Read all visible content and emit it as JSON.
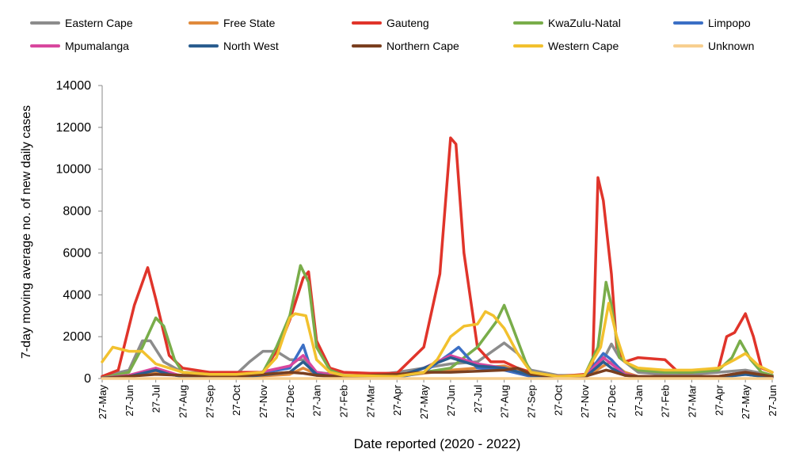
{
  "chart_data": {
    "type": "line",
    "xlabel": "Date reported (2020 - 2022)",
    "ylabel": "7-day moving average no. of new daily cases",
    "ylim": [
      0,
      14000
    ],
    "yticks": [
      0,
      2000,
      4000,
      6000,
      8000,
      10000,
      12000,
      14000
    ],
    "x_tick_labels": [
      "27-May",
      "27-Jun",
      "27-Jul",
      "27-Aug",
      "27-Sep",
      "27-Oct",
      "27-Nov",
      "27-Dec",
      "27-Jan",
      "27-Feb",
      "27-Mar",
      "27-Apr",
      "27-May",
      "27-Jun",
      "27-Jul",
      "27-Aug",
      "27-Sep",
      "27-Oct",
      "27-Nov",
      "27-Dec",
      "27-Jan",
      "27-Feb",
      "27-Mar",
      "27-Apr",
      "27-May",
      "27-Jun"
    ],
    "x_index_note": "x values are month indices: 0 = 27-May-2020, 25 = 27-Jun-2022",
    "grid": false,
    "legend_position": "top",
    "series": [
      {
        "name": "Eastern Cape",
        "color": "#8c8c8c",
        "points": [
          [
            0,
            100
          ],
          [
            1,
            400
          ],
          [
            1.5,
            1800
          ],
          [
            1.8,
            1800
          ],
          [
            2.3,
            800
          ],
          [
            3,
            300
          ],
          [
            5,
            200
          ],
          [
            5.5,
            800
          ],
          [
            6,
            1300
          ],
          [
            6.5,
            1300
          ],
          [
            7,
            900
          ],
          [
            7.5,
            900
          ],
          [
            8,
            300
          ],
          [
            9,
            150
          ],
          [
            10,
            150
          ],
          [
            11,
            300
          ],
          [
            12,
            500
          ],
          [
            13,
            700
          ],
          [
            14,
            800
          ],
          [
            15,
            1700
          ],
          [
            15.5,
            1200
          ],
          [
            16,
            400
          ],
          [
            17,
            150
          ],
          [
            18,
            150
          ],
          [
            18.7,
            900
          ],
          [
            19,
            1650
          ],
          [
            19.3,
            1000
          ],
          [
            20,
            300
          ],
          [
            21,
            200
          ],
          [
            22,
            200
          ],
          [
            23,
            300
          ],
          [
            24,
            400
          ],
          [
            25,
            150
          ]
        ]
      },
      {
        "name": "Free State",
        "color": "#e08a3c",
        "points": [
          [
            0,
            30
          ],
          [
            1,
            100
          ],
          [
            2,
            300
          ],
          [
            3,
            150
          ],
          [
            5,
            50
          ],
          [
            7,
            200
          ],
          [
            7.5,
            500
          ],
          [
            8,
            200
          ],
          [
            9,
            50
          ],
          [
            11,
            100
          ],
          [
            13,
            400
          ],
          [
            14,
            500
          ],
          [
            15,
            600
          ],
          [
            16,
            200
          ],
          [
            18,
            50
          ],
          [
            18.7,
            600
          ],
          [
            19,
            800
          ],
          [
            19.5,
            300
          ],
          [
            20,
            100
          ],
          [
            23,
            100
          ],
          [
            24,
            300
          ],
          [
            25,
            100
          ]
        ]
      },
      {
        "name": "Gauteng",
        "color": "#e0342a",
        "points": [
          [
            0,
            100
          ],
          [
            0.6,
            400
          ],
          [
            1.2,
            3500
          ],
          [
            1.7,
            5300
          ],
          [
            2,
            3800
          ],
          [
            2.5,
            1100
          ],
          [
            3,
            500
          ],
          [
            4,
            300
          ],
          [
            5,
            300
          ],
          [
            6,
            300
          ],
          [
            6.6,
            1500
          ],
          [
            7,
            2800
          ],
          [
            7.5,
            4800
          ],
          [
            7.7,
            5100
          ],
          [
            8,
            1800
          ],
          [
            8.5,
            500
          ],
          [
            9,
            300
          ],
          [
            10,
            250
          ],
          [
            11,
            250
          ],
          [
            12,
            1500
          ],
          [
            12.6,
            5000
          ],
          [
            13,
            11500
          ],
          [
            13.2,
            11200
          ],
          [
            13.5,
            6000
          ],
          [
            14,
            1500
          ],
          [
            14.5,
            800
          ],
          [
            15,
            800
          ],
          [
            15.5,
            500
          ],
          [
            16,
            300
          ],
          [
            17,
            100
          ],
          [
            18,
            200
          ],
          [
            18.3,
            500
          ],
          [
            18.5,
            9600
          ],
          [
            18.7,
            8500
          ],
          [
            19,
            5000
          ],
          [
            19.2,
            1500
          ],
          [
            19.5,
            800
          ],
          [
            20,
            1000
          ],
          [
            21,
            900
          ],
          [
            21.5,
            300
          ],
          [
            22,
            300
          ],
          [
            23,
            500
          ],
          [
            23.3,
            2000
          ],
          [
            23.6,
            2200
          ],
          [
            24,
            3100
          ],
          [
            24.3,
            2000
          ],
          [
            24.6,
            500
          ],
          [
            25,
            300
          ]
        ]
      },
      {
        "name": "KwaZulu-Natal",
        "color": "#79ad4a",
        "points": [
          [
            0,
            30
          ],
          [
            1,
            300
          ],
          [
            1.5,
            1500
          ],
          [
            2,
            2900
          ],
          [
            2.3,
            2500
          ],
          [
            2.7,
            900
          ],
          [
            3,
            300
          ],
          [
            5,
            100
          ],
          [
            6,
            300
          ],
          [
            6.5,
            1500
          ],
          [
            7,
            3000
          ],
          [
            7.4,
            5400
          ],
          [
            7.7,
            4600
          ],
          [
            8,
            1500
          ],
          [
            8.5,
            400
          ],
          [
            9,
            150
          ],
          [
            11,
            100
          ],
          [
            12,
            300
          ],
          [
            13,
            500
          ],
          [
            13.5,
            1000
          ],
          [
            14,
            1500
          ],
          [
            14.7,
            2700
          ],
          [
            15,
            3500
          ],
          [
            15.3,
            2500
          ],
          [
            15.8,
            800
          ],
          [
            16,
            300
          ],
          [
            17,
            100
          ],
          [
            18,
            150
          ],
          [
            18.5,
            1500
          ],
          [
            18.8,
            4600
          ],
          [
            19,
            3500
          ],
          [
            19.3,
            1000
          ],
          [
            20,
            400
          ],
          [
            21,
            300
          ],
          [
            22,
            300
          ],
          [
            23,
            400
          ],
          [
            23.5,
            1000
          ],
          [
            23.8,
            1800
          ],
          [
            24.2,
            900
          ],
          [
            24.6,
            300
          ],
          [
            25,
            150
          ]
        ]
      },
      {
        "name": "Limpopo",
        "color": "#3b6fc5",
        "points": [
          [
            0,
            20
          ],
          [
            1,
            100
          ],
          [
            2,
            400
          ],
          [
            2.5,
            200
          ],
          [
            3,
            100
          ],
          [
            5,
            50
          ],
          [
            7,
            500
          ],
          [
            7.5,
            1600
          ],
          [
            7.8,
            400
          ],
          [
            8,
            150
          ],
          [
            9,
            50
          ],
          [
            11,
            50
          ],
          [
            12,
            300
          ],
          [
            13,
            1200
          ],
          [
            13.3,
            1500
          ],
          [
            14,
            500
          ],
          [
            15,
            400
          ],
          [
            16,
            100
          ],
          [
            18,
            50
          ],
          [
            18.7,
            1200
          ],
          [
            19,
            900
          ],
          [
            19.5,
            200
          ],
          [
            20,
            80
          ],
          [
            23,
            50
          ],
          [
            24,
            200
          ],
          [
            25,
            50
          ]
        ]
      },
      {
        "name": "Mpumalanga",
        "color": "#d8479e",
        "points": [
          [
            0,
            20
          ],
          [
            1,
            150
          ],
          [
            2,
            500
          ],
          [
            2.5,
            300
          ],
          [
            3,
            100
          ],
          [
            5,
            50
          ],
          [
            7,
            600
          ],
          [
            7.5,
            1100
          ],
          [
            8,
            300
          ],
          [
            9,
            80
          ],
          [
            11,
            80
          ],
          [
            12,
            500
          ],
          [
            13,
            1100
          ],
          [
            13.5,
            900
          ],
          [
            14,
            700
          ],
          [
            15,
            500
          ],
          [
            16,
            150
          ],
          [
            18,
            80
          ],
          [
            18.7,
            1000
          ],
          [
            19,
            700
          ],
          [
            19.5,
            200
          ],
          [
            20,
            100
          ],
          [
            23,
            100
          ],
          [
            24,
            300
          ],
          [
            25,
            100
          ]
        ]
      },
      {
        "name": "North West",
        "color": "#2a5d8f",
        "points": [
          [
            0,
            20
          ],
          [
            1,
            100
          ],
          [
            2,
            400
          ],
          [
            2.5,
            200
          ],
          [
            3,
            100
          ],
          [
            5,
            50
          ],
          [
            7,
            300
          ],
          [
            7.5,
            800
          ],
          [
            8,
            200
          ],
          [
            9,
            50
          ],
          [
            11,
            100
          ],
          [
            12,
            500
          ],
          [
            13,
            1000
          ],
          [
            14,
            600
          ],
          [
            15,
            500
          ],
          [
            16,
            150
          ],
          [
            18,
            50
          ],
          [
            18.7,
            800
          ],
          [
            19,
            500
          ],
          [
            19.5,
            150
          ],
          [
            20,
            80
          ],
          [
            23,
            80
          ],
          [
            24,
            200
          ],
          [
            25,
            50
          ]
        ]
      },
      {
        "name": "Northern Cape",
        "color": "#7a3f1f",
        "points": [
          [
            0,
            10
          ],
          [
            2,
            200
          ],
          [
            3,
            150
          ],
          [
            5,
            100
          ],
          [
            6,
            200
          ],
          [
            7,
            300
          ],
          [
            7.5,
            250
          ],
          [
            8,
            150
          ],
          [
            9,
            100
          ],
          [
            11,
            200
          ],
          [
            12,
            300
          ],
          [
            13,
            300
          ],
          [
            14,
            350
          ],
          [
            15,
            400
          ],
          [
            15.5,
            500
          ],
          [
            16,
            200
          ],
          [
            17,
            80
          ],
          [
            18,
            100
          ],
          [
            18.8,
            400
          ],
          [
            19,
            350
          ],
          [
            19.5,
            150
          ],
          [
            20,
            100
          ],
          [
            23,
            100
          ],
          [
            24,
            300
          ],
          [
            25,
            100
          ]
        ]
      },
      {
        "name": "Western Cape",
        "color": "#f2c12e",
        "points": [
          [
            0,
            800
          ],
          [
            0.4,
            1500
          ],
          [
            0.7,
            1400
          ],
          [
            1,
            1300
          ],
          [
            1.5,
            1300
          ],
          [
            2,
            700
          ],
          [
            3,
            300
          ],
          [
            4,
            200
          ],
          [
            5,
            200
          ],
          [
            6,
            300
          ],
          [
            6.5,
            1000
          ],
          [
            7,
            2900
          ],
          [
            7.2,
            3100
          ],
          [
            7.6,
            3000
          ],
          [
            8,
            900
          ],
          [
            8.5,
            300
          ],
          [
            9,
            150
          ],
          [
            11,
            100
          ],
          [
            12,
            300
          ],
          [
            12.5,
            900
          ],
          [
            13,
            2000
          ],
          [
            13.5,
            2500
          ],
          [
            14,
            2600
          ],
          [
            14.3,
            3200
          ],
          [
            14.6,
            3000
          ],
          [
            15,
            2400
          ],
          [
            15.5,
            1200
          ],
          [
            16,
            300
          ],
          [
            17,
            100
          ],
          [
            18,
            150
          ],
          [
            18.6,
            1500
          ],
          [
            18.9,
            3600
          ],
          [
            19.2,
            2000
          ],
          [
            19.5,
            800
          ],
          [
            20,
            500
          ],
          [
            21,
            400
          ],
          [
            22,
            400
          ],
          [
            23,
            500
          ],
          [
            23.6,
            900
          ],
          [
            24,
            1200
          ],
          [
            24.5,
            600
          ],
          [
            25,
            300
          ]
        ]
      },
      {
        "name": "Unknown",
        "color": "#f7cf8f",
        "points": [
          [
            0,
            0
          ],
          [
            25,
            0
          ]
        ]
      }
    ]
  }
}
